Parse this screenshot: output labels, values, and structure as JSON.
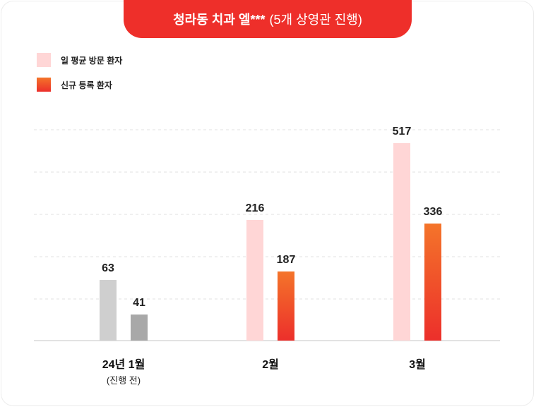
{
  "title": {
    "main": "청라동 치과 엘***",
    "sub": "(5개 상영관 진행)"
  },
  "colors": {
    "title_bg": "#ee2f2a",
    "pale_pink": "#ffd6d6",
    "orange_top": "#f4742a",
    "red_bottom": "#ec2f2b",
    "gray_light": "#cfcfcf",
    "gray_dark": "#a8a8a8"
  },
  "chart_data": {
    "type": "bar",
    "title": "청라동 치과 엘*** (5개 상영관 진행)",
    "categories": [
      "24년 1월",
      "2월",
      "3월"
    ],
    "category_sublabels": [
      "(진행 전)",
      "",
      ""
    ],
    "series": [
      {
        "name": "일 평균 방문 환자",
        "values": [
          63,
          216,
          517
        ]
      },
      {
        "name": "신규 등록 환자",
        "values": [
          41,
          187,
          336
        ]
      }
    ],
    "legend_position": "top-left",
    "grid": true
  }
}
